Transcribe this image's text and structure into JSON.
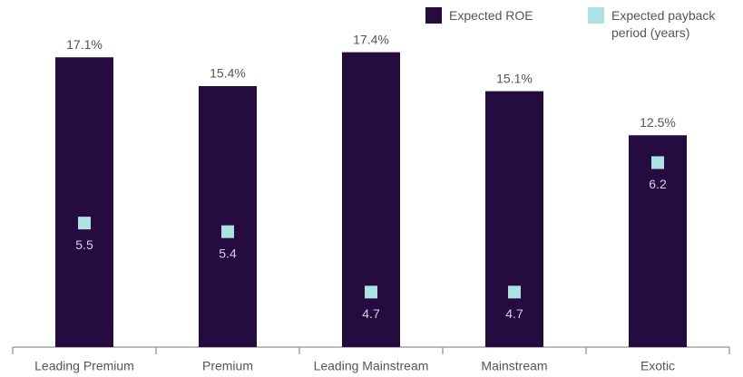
{
  "chart_data": {
    "type": "bar",
    "categories": [
      "Leading Premium",
      "Premium",
      "Leading Mainstream",
      "Mainstream",
      "Exotic"
    ],
    "series": [
      {
        "name": "Expected ROE",
        "color": "#250b40",
        "values": [
          17.1,
          15.4,
          17.4,
          15.1,
          12.5
        ],
        "value_labels": [
          "17.1%",
          "15.4%",
          "17.4%",
          "15.1%",
          "12.5%"
        ]
      },
      {
        "name": "Expected payback period (years)",
        "color": "#ade2e2",
        "axis": "y2",
        "marker": "square",
        "values": [
          5.5,
          5.4,
          4.7,
          4.7,
          6.2
        ]
      }
    ],
    "ylim": [
      0,
      20
    ],
    "y2lim": [
      4,
      8
    ],
    "legend": "top-right"
  }
}
